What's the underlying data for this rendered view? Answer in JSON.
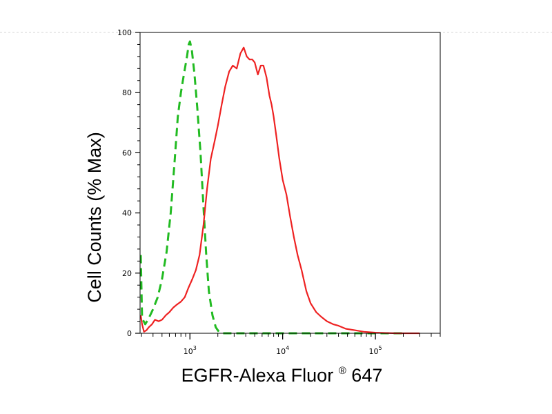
{
  "chart_data": {
    "type": "line",
    "title": "",
    "xlabel": "EGFR-Alexa Fluor",
    "xlabel_superscript": "®",
    "xlabel_suffix": " 647",
    "ylabel": "Cell Counts (% Max)",
    "x_scale": "log",
    "xlim": [
      290,
      500000
    ],
    "ylim": [
      0,
      100
    ],
    "y_ticks": [
      0,
      20,
      40,
      60,
      80,
      100
    ],
    "y_tick_labels": [
      "0",
      "20",
      "40",
      "60",
      "80",
      "100"
    ],
    "x_ticks": [
      {
        "value": 1000,
        "base": "10",
        "exp": "3"
      },
      {
        "value": 10000,
        "base": "10",
        "exp": "4"
      },
      {
        "value": 100000,
        "base": "10",
        "exp": "5"
      }
    ],
    "grid": false,
    "legend": "none",
    "series": [
      {
        "color": "#22bb22",
        "dash": "dashed",
        "x": [
          295,
          305,
          330,
          360,
          400,
          450,
          500,
          560,
          620,
          680,
          740,
          800,
          860,
          930,
          970,
          1000,
          1050,
          1120,
          1200,
          1300,
          1400,
          1500,
          1600,
          1750,
          1900,
          2050,
          2200,
          2500,
          3000,
          5000,
          10000,
          20000,
          50000,
          100000,
          200000
        ],
        "y": [
          26,
          5,
          3,
          5,
          8,
          12,
          18,
          27,
          40,
          56,
          72,
          80,
          86,
          92,
          96,
          97,
          94,
          86,
          75,
          60,
          42,
          26,
          14,
          6,
          2,
          0.5,
          0,
          0,
          0,
          0,
          0,
          0,
          0,
          0,
          0
        ]
      },
      {
        "color": "#ee2222",
        "dash": "solid",
        "x": [
          295,
          305,
          320,
          340,
          360,
          390,
          420,
          460,
          500,
          550,
          600,
          660,
          720,
          800,
          880,
          960,
          1060,
          1160,
          1270,
          1400,
          1530,
          1680,
          1850,
          2000,
          2200,
          2400,
          2650,
          2900,
          3200,
          3500,
          3800,
          4100,
          4400,
          4700,
          5000,
          5400,
          5800,
          6200,
          6700,
          7200,
          7600,
          8000,
          8500,
          9200,
          10000,
          11000,
          12000,
          13200,
          14500,
          16000,
          18000,
          20000,
          23000,
          26000,
          30000,
          35000,
          40000,
          48000,
          60000,
          75000,
          100000,
          130000,
          170000,
          230000,
          300000
        ],
        "y": [
          6,
          3,
          0.5,
          1,
          2,
          3,
          4.5,
          4,
          4.5,
          6,
          7,
          8.5,
          9.5,
          10.5,
          12,
          15,
          18,
          21,
          26,
          36,
          48,
          58,
          64,
          69,
          76,
          82,
          87,
          89,
          88,
          93,
          95,
          92,
          91,
          91,
          90,
          86,
          89,
          89,
          85,
          79,
          76,
          72,
          66,
          58,
          51,
          46,
          39,
          32,
          26,
          21,
          14,
          10,
          7,
          5.5,
          4,
          3,
          2.5,
          1.5,
          1,
          0.5,
          0.2,
          0.1,
          0,
          0,
          0
        ]
      }
    ]
  }
}
